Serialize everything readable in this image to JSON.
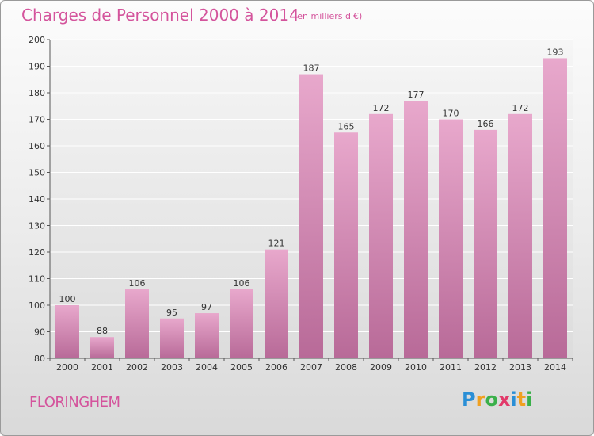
{
  "header": {
    "title": "Charges de Personnel 2000 à 2014",
    "subtitle": "(en milliers d'€)"
  },
  "footer": {
    "commune": "FLORINGHEM",
    "logo_letters": [
      {
        "ch": "P",
        "color": "#2a8fd6"
      },
      {
        "ch": "r",
        "color": "#f0a020"
      },
      {
        "ch": "o",
        "color": "#3ab04a"
      },
      {
        "ch": "x",
        "color": "#e23a6a"
      },
      {
        "ch": "i",
        "color": "#2a8fd6"
      },
      {
        "ch": "t",
        "color": "#f0a020"
      },
      {
        "ch": "i",
        "color": "#3ab04a"
      }
    ]
  },
  "chart_data": {
    "type": "bar",
    "categories": [
      "2000",
      "2001",
      "2002",
      "2003",
      "2004",
      "2005",
      "2006",
      "2007",
      "2008",
      "2009",
      "2010",
      "2011",
      "2012",
      "2013",
      "2014"
    ],
    "values": [
      100,
      88,
      106,
      95,
      97,
      106,
      121,
      187,
      165,
      172,
      177,
      170,
      166,
      172,
      193
    ],
    "title": "Charges de Personnel 2000 à 2014",
    "subtitle": "(en milliers d'€)",
    "ylim": [
      80,
      200
    ],
    "yticks": [
      80,
      90,
      100,
      110,
      120,
      130,
      140,
      150,
      160,
      170,
      180,
      190,
      200
    ],
    "grid": true,
    "bar_color": "#d882b4"
  }
}
